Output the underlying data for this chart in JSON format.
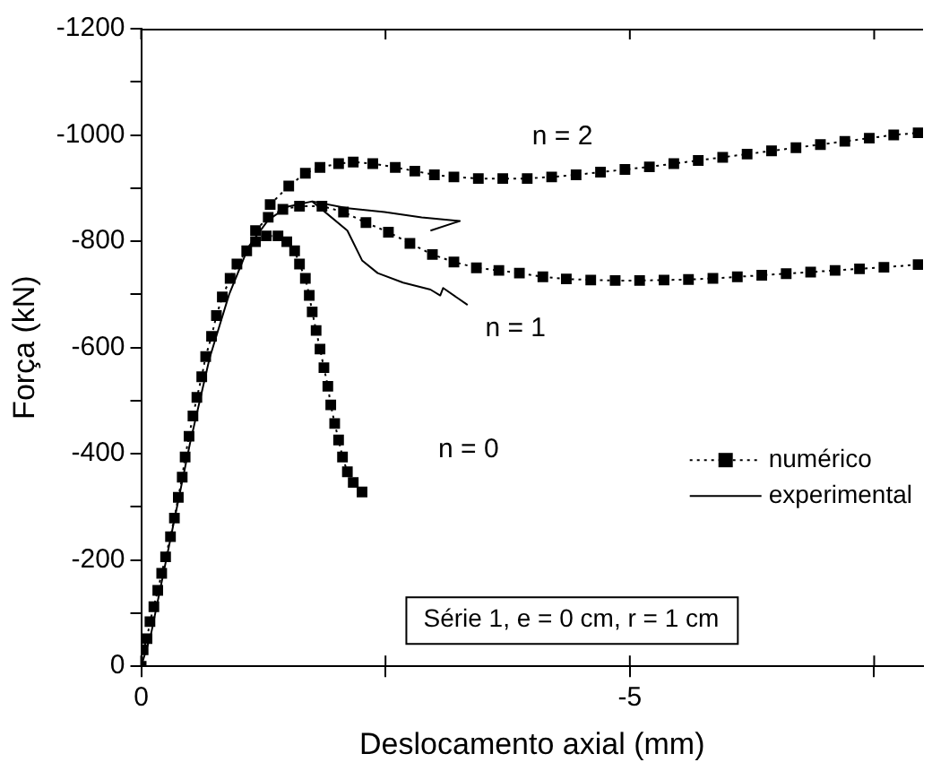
{
  "chart_data": {
    "type": "line",
    "xlabel": "Deslocamento axial (mm)",
    "ylabel": "Força (kN)",
    "xlim": [
      0,
      -8
    ],
    "xticks": [
      0,
      {
        "value": -2.5,
        "label": null
      },
      -5,
      {
        "value": -7.5,
        "label": null
      }
    ],
    "ylim": [
      0,
      -1200
    ],
    "yticks": [
      0,
      {
        "value": -100,
        "label": null
      },
      -200,
      {
        "value": -300,
        "label": null
      },
      -400,
      {
        "value": -500,
        "label": null
      },
      -600,
      {
        "value": -700,
        "label": null
      },
      -800,
      {
        "value": -900,
        "label": null
      },
      -1000,
      {
        "value": -1100,
        "label": null
      },
      -1200
    ],
    "grid": false,
    "legend": "bottom right",
    "annotations": [
      "n = 2",
      "n = 1",
      "n = 0",
      "Série 1, e = 0 cm, r = 1 cm"
    ],
    "series": [
      {
        "name": "numérico",
        "color": "#000000",
        "marker": "square",
        "line_style": "dotted",
        "x": [
          0,
          -0.02,
          -0.06,
          -0.09,
          -0.13,
          -0.17,
          -0.21,
          -0.25,
          -0.3,
          -0.34,
          -0.38,
          -0.42,
          -0.45,
          -0.49,
          -0.53,
          -0.57,
          -0.62,
          -0.66,
          -0.72,
          -0.77,
          -0.83,
          -0.91,
          -0.98,
          -1.08,
          -1.17,
          -1.28,
          -1.4,
          -1.49,
          -1.57,
          -1.62,
          -1.68,
          -1.72,
          -1.75,
          -1.79,
          -1.83,
          -1.87,
          -1.91,
          -1.94,
          -1.98,
          -2.02,
          -2.06,
          -2.11,
          -2.17,
          -2.26
        ],
        "values": [
          0,
          -31,
          -52,
          -84,
          -112,
          -143,
          -175,
          -206,
          -244,
          -279,
          -318,
          -356,
          -394,
          -433,
          -471,
          -506,
          -545,
          -583,
          -621,
          -660,
          -695,
          -730,
          -757,
          -782,
          -799,
          -810,
          -810,
          -799,
          -782,
          -757,
          -730,
          -698,
          -667,
          -632,
          -597,
          -562,
          -527,
          -492,
          -457,
          -426,
          -394,
          -366,
          -346,
          -328
        ]
      },
      {
        "color": "#000000",
        "marker": "square",
        "line_style": "dotted",
        "x": [
          -1.17,
          -1.3,
          -1.45,
          -1.62,
          -1.85,
          -2.07,
          -2.3,
          -2.53,
          -2.75,
          -2.98,
          -3.2,
          -3.43,
          -3.66,
          -3.87,
          -4.11,
          -4.35,
          -4.6,
          -4.85,
          -5.1,
          -5.35,
          -5.6,
          -5.85,
          -6.1,
          -6.35,
          -6.6,
          -6.85,
          -7.1,
          -7.35,
          -7.6,
          -7.95
        ],
        "values": [
          -820,
          -845,
          -860,
          -866,
          -866,
          -855,
          -835,
          -817,
          -796,
          -775,
          -761,
          -750,
          -745,
          -740,
          -733,
          -729,
          -727,
          -726,
          -726,
          -727,
          -728,
          -730,
          -733,
          -736,
          -739,
          -742,
          -745,
          -748,
          -751,
          -756
        ]
      },
      {
        "color": "#000000",
        "marker": "square",
        "line_style": "dotted",
        "x": [
          -1.32,
          -1.51,
          -1.68,
          -1.83,
          -2.02,
          -2.17,
          -2.37,
          -2.6,
          -2.8,
          -3.0,
          -3.2,
          -3.45,
          -3.7,
          -3.95,
          -4.2,
          -4.45,
          -4.7,
          -4.95,
          -5.2,
          -5.45,
          -5.7,
          -5.95,
          -6.2,
          -6.45,
          -6.7,
          -6.95,
          -7.2,
          -7.45,
          -7.7,
          -7.95
        ],
        "values": [
          -869,
          -904,
          -928,
          -939,
          -946,
          -949,
          -946,
          -939,
          -932,
          -925,
          -921,
          -918,
          -918,
          -918,
          -921,
          -925,
          -930,
          -935,
          -940,
          -946,
          -952,
          -958,
          -964,
          -970,
          -976,
          -982,
          -988,
          -994,
          -1000,
          -1004
        ]
      },
      {
        "name": "experimental",
        "color": "#000000",
        "marker": "none",
        "line_style": "solid",
        "x": [
          0,
          -0.1,
          -0.3,
          -0.5,
          -0.7,
          -0.9,
          -1.1,
          -1.3,
          -1.5,
          -1.75,
          -2.11,
          -2.49,
          -2.87,
          -3.26,
          -2.96
        ],
        "values": [
          0,
          -60,
          -240,
          -420,
          -580,
          -700,
          -790,
          -840,
          -865,
          -875,
          -862,
          -855,
          -845,
          -838,
          -820
        ]
      },
      {
        "color": "#000000",
        "marker": "none",
        "line_style": "solid",
        "x": [
          -1.75,
          -2.11,
          -2.26,
          -2.42,
          -2.68,
          -2.96,
          -3.06,
          -3.09,
          -3.34
        ],
        "values": [
          -875,
          -820,
          -764,
          -740,
          -722,
          -709,
          -698,
          -712,
          -680
        ]
      }
    ]
  }
}
